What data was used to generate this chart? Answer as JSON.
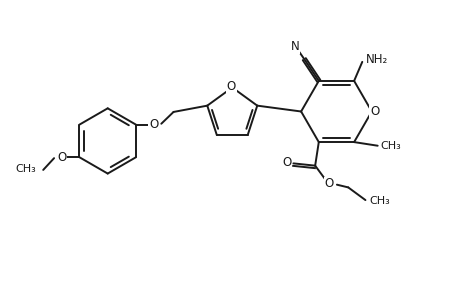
{
  "bg_color": "#ffffff",
  "line_color": "#1a1a1a",
  "line_width": 1.4,
  "font_size": 8.5,
  "figsize": [
    4.6,
    3.0
  ],
  "dpi": 100,
  "xlim": [
    0,
    10
  ],
  "ylim": [
    0,
    6.5
  ]
}
